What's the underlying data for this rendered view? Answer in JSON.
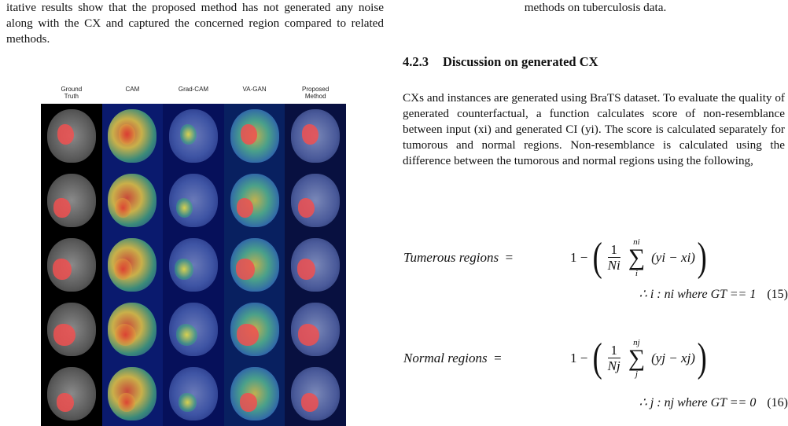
{
  "left": {
    "paragraph": "itative results show that the proposed method has not generated any noise along with the CX and captured the concerned region compared to related methods.",
    "figure": {
      "column_headers": [
        "Ground\nTruth",
        "CAM",
        "Grad-CAM",
        "VA-GAN",
        "Proposed\nMethod"
      ],
      "rows": 5
    }
  },
  "right": {
    "caption_tail": "methods on tuberculosis data.",
    "section_number": "4.2.3",
    "section_title": "Discussion on generated CX",
    "paragraph": "CXs and instances are generated using BraTS dataset. To evaluate the quality of generated counterfactual, a function calculates score of non-resemblance between input (xi) and generated CI (yi). The score is calculated separately for tumorous and normal regions. Non-resemblance is calculated using the difference between the tumorous and normal regions using the following,",
    "equations": [
      {
        "lhs": "Tumerous regions",
        "eq": "=",
        "one": "1 −",
        "num": "1",
        "den": "Ni",
        "sum_sup": "ni",
        "sum_sub": "i",
        "term": "(yi − xi)",
        "condition": "∴ i : ni where GT == 1",
        "number": "(15)"
      },
      {
        "lhs": "Normal regions",
        "eq": "=",
        "one": "1 −",
        "num": "1",
        "den": "Nj",
        "sum_sup": "nj",
        "sum_sub": "j",
        "term": "(yj − xj)",
        "condition": "∴ j : nj where GT == 0",
        "number": "(16)"
      }
    ]
  }
}
